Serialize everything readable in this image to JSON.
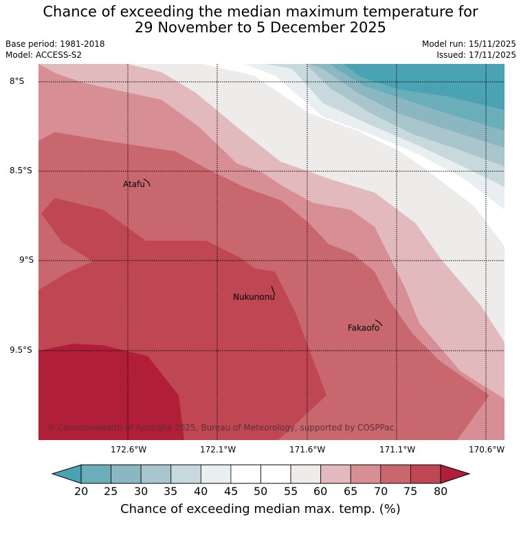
{
  "title_line1": "Chance of exceeding the median maximum temperature for",
  "title_line2": "29 November to 5 December 2025",
  "base_period": "Base period: 1981-2018",
  "model": "Model: ACCESS-S2",
  "model_run": "Model run: 15/11/2025",
  "issued": "Issued: 17/11/2025",
  "lat_labels": [
    "8°S",
    "8.5°S",
    "9°S",
    "9.5°S"
  ],
  "lon_labels": [
    "172.6°W",
    "172.1°W",
    "171.6°W",
    "171.1°W",
    "170.6°W"
  ],
  "places": {
    "atafu": "Atafu",
    "nukunonu": "Nukunonu",
    "fakaofo": "Fakaofo"
  },
  "copyright": "© Commonwealth of Australia 2025, Bureau of Meteorology, supported by COSPPac",
  "colorbar": {
    "ticks": [
      "20",
      "25",
      "30",
      "35",
      "40",
      "45",
      "50",
      "55",
      "60",
      "65",
      "70",
      "75",
      "80"
    ],
    "colors": [
      "#4aa3b2",
      "#6aaeba",
      "#8ab7c2",
      "#a9c6cc",
      "#c8d9de",
      "#e9eff1",
      "#ffffff",
      "#ffffff",
      "#eeecea",
      "#e2b9bd",
      "#d78e95",
      "#c9676f",
      "#bf4754",
      "#b01e38"
    ],
    "label": "Chance of exceeding median max. temp. (%)"
  }
}
